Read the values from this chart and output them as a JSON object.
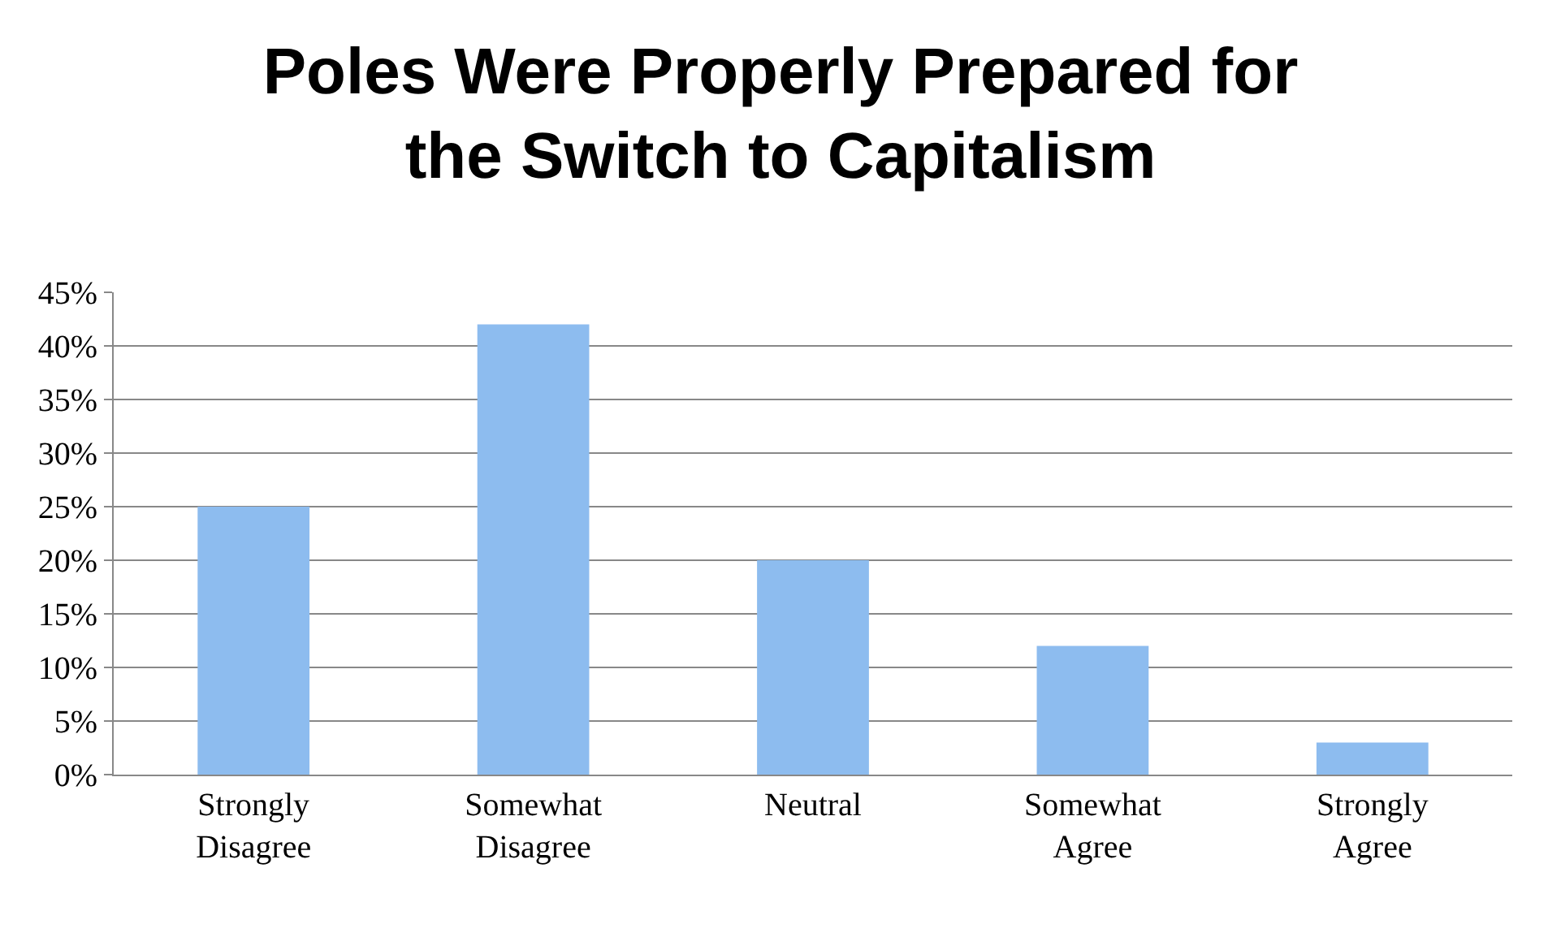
{
  "chart_data": {
    "type": "bar",
    "title": "Poles Were Properly Prepared for the Switch to Capitalism",
    "categories": [
      "Strongly Disagree",
      "Somewhat Disagree",
      "Neutral",
      "Somewhat Agree",
      "Strongly Agree"
    ],
    "values": [
      25,
      42,
      20,
      12,
      3
    ],
    "color": "#8dbcef",
    "ylim": [
      0,
      45
    ],
    "yticks": [
      {
        "value": 0,
        "label": "0%"
      },
      {
        "value": 5,
        "label": "5%"
      },
      {
        "value": 10,
        "label": "10%"
      },
      {
        "value": 15,
        "label": "15%"
      },
      {
        "value": 20,
        "label": "20%"
      },
      {
        "value": 25,
        "label": "25%"
      },
      {
        "value": 30,
        "label": "30%"
      },
      {
        "value": 35,
        "label": "35%"
      },
      {
        "value": 40,
        "label": "40%"
      },
      {
        "value": 45,
        "label": "45%"
      }
    ],
    "grid": "y"
  }
}
